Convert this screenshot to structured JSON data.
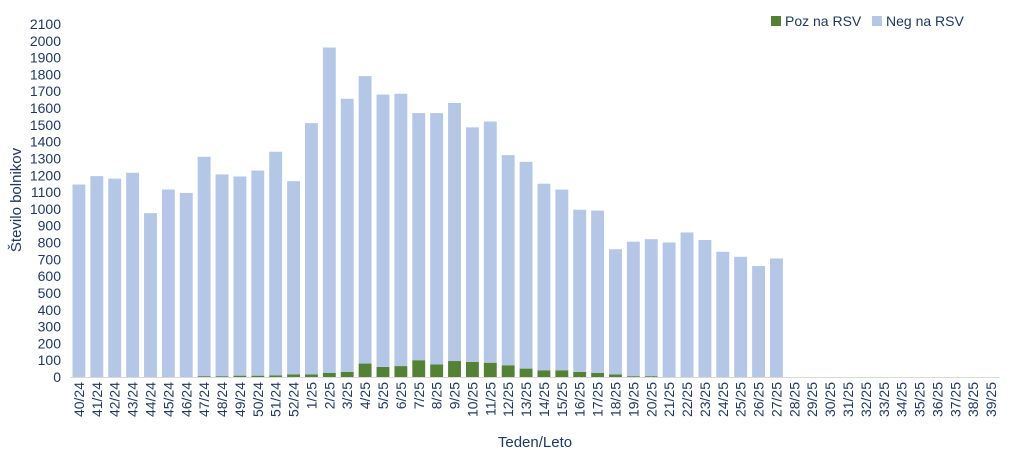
{
  "chart_data": {
    "type": "bar",
    "stacked": true,
    "xlabel": "Teden/Leto",
    "ylabel": "Število bolnikov",
    "ylim": [
      0,
      2100
    ],
    "ytick_step": 100,
    "grid": false,
    "legend_position": "top-right",
    "categories": [
      "40/24",
      "41/24",
      "42/24",
      "43/24",
      "44/24",
      "45/24",
      "46/24",
      "47/24",
      "48/24",
      "49/24",
      "50/24",
      "51/24",
      "52/24",
      "1/25",
      "2/25",
      "3/25",
      "4/25",
      "5/25",
      "6/25",
      "7/25",
      "8/25",
      "9/25",
      "10/25",
      "11/25",
      "12/25",
      "13/25",
      "14/25",
      "15/25",
      "16/25",
      "17/25",
      "18/25",
      "19/25",
      "20/25",
      "21/25",
      "22/25",
      "23/25",
      "24/25",
      "25/25",
      "26/25",
      "27/25",
      "28/25",
      "29/25",
      "30/25",
      "31/25",
      "32/25",
      "33/25",
      "34/25",
      "35/25",
      "36/25",
      "37/25",
      "38/25",
      "39/25"
    ],
    "series": [
      {
        "name": "Poz na RSV",
        "color": "#548235",
        "values": [
          0,
          0,
          0,
          0,
          0,
          0,
          0,
          5,
          5,
          8,
          8,
          10,
          15,
          15,
          25,
          30,
          80,
          60,
          65,
          100,
          75,
          95,
          90,
          85,
          70,
          50,
          40,
          40,
          30,
          25,
          15,
          5,
          5,
          0,
          0,
          0,
          0,
          0,
          0,
          0,
          null,
          null,
          null,
          null,
          null,
          null,
          null,
          null,
          null,
          null,
          null,
          null
        ]
      },
      {
        "name": "Neg na RSV",
        "color": "#b4c7e7",
        "values": [
          1145,
          1195,
          1180,
          1215,
          975,
          1115,
          1095,
          1305,
          1200,
          1185,
          1220,
          1330,
          1150,
          1495,
          1935,
          1625,
          1710,
          1620,
          1620,
          1470,
          1495,
          1535,
          1395,
          1435,
          1250,
          1230,
          1110,
          1075,
          965,
          965,
          745,
          800,
          815,
          800,
          860,
          815,
          745,
          715,
          660,
          705,
          null,
          null,
          null,
          null,
          null,
          null,
          null,
          null,
          null,
          null,
          null,
          null
        ]
      }
    ]
  }
}
